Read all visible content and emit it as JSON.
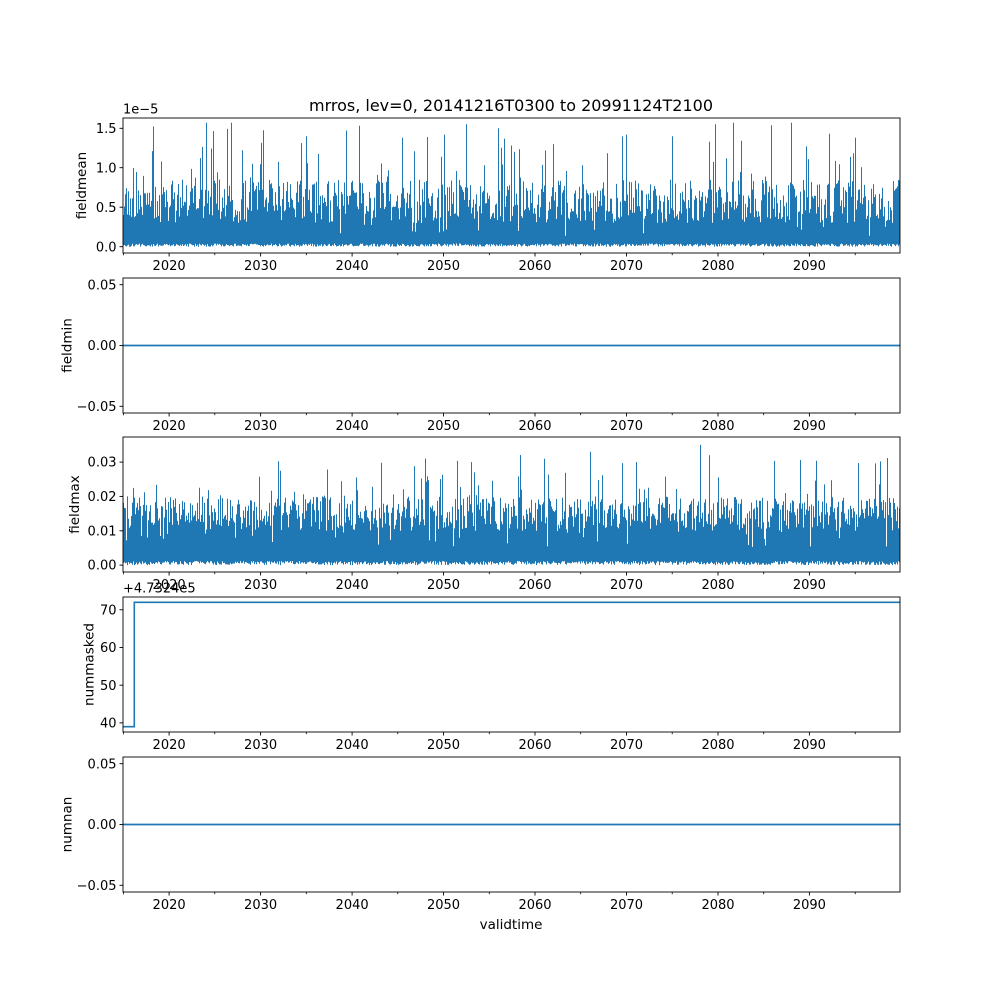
{
  "figure": {
    "title": "mrros, lev=0, 20141216T0300 to 20991124T2100",
    "xlabel": "validtime",
    "colors": {
      "line": "#1f77b4",
      "axes": "#000000",
      "background": "#ffffff",
      "text": "#000000"
    }
  },
  "x_axis": {
    "label": "validtime",
    "range": [
      2014.96,
      2099.9
    ],
    "major_ticks": [
      2020,
      2030,
      2040,
      2050,
      2060,
      2070,
      2080,
      2090
    ],
    "major_tick_labels": [
      "2020",
      "2030",
      "2040",
      "2050",
      "2060",
      "2070",
      "2080",
      "2090"
    ],
    "minor_ticks": [
      2015,
      2025,
      2035,
      2045,
      2055,
      2065,
      2075,
      2085,
      2095
    ]
  },
  "chart_data": [
    {
      "type": "line",
      "name": "fieldmean",
      "ylabel": "fieldmean",
      "offset_text": "1e−5",
      "unit_multiplier": "1e-5",
      "ylim": [
        -0.08,
        1.63
      ],
      "yticks": [
        0.0,
        0.5,
        1.0,
        1.5
      ],
      "ytick_labels": [
        "0.0",
        "0.5",
        "1.0",
        "1.5"
      ],
      "description": "Dense noisy 3-hourly series 2014-2099; baseline 0, solid mass up to ~0.3-0.8e-5, frequent peaks ~1.0e-5, rare spikes to ~1.57e-5",
      "series": {
        "kind": "noise",
        "seed": 1337,
        "base": 0.3,
        "var": 0.55,
        "spike_prob": 0.1,
        "spike_base": 0.2,
        "spike_var": 0.75,
        "dip_prob": 0.05,
        "dip_factor": 0.45,
        "max": 1.57,
        "lo_max": 0.04,
        "forced_spikes": [
          [
            2035,
            1.4
          ],
          [
            2045.5,
            1.38
          ],
          [
            2050,
            1.42
          ],
          [
            2052.5,
            1.55
          ],
          [
            2056,
            1.5
          ],
          [
            2062,
            1.3
          ],
          [
            2070,
            1.42
          ],
          [
            2075,
            1.4
          ],
          [
            2079,
            1.33
          ],
          [
            2088,
            1.57
          ],
          [
            2095,
            1.38
          ]
        ]
      }
    },
    {
      "type": "line",
      "name": "fieldmin",
      "ylabel": "fieldmin",
      "ylim": [
        -0.0555,
        0.0555
      ],
      "yticks": [
        -0.05,
        0.0,
        0.05
      ],
      "ytick_labels": [
        "−0.05",
        "0.00",
        "0.05"
      ],
      "description": "Constant zero over the whole 2014-2099 period",
      "series": {
        "kind": "constant",
        "value": 0
      }
    },
    {
      "type": "line",
      "name": "fieldmax",
      "ylabel": "fieldmax",
      "ylim": [
        -0.002,
        0.0373
      ],
      "yticks": [
        0.0,
        0.01,
        0.02,
        0.03
      ],
      "ytick_labels": [
        "0.00",
        "0.01",
        "0.02",
        "0.03"
      ],
      "description": "Dense noisy 3-hourly series; baseline 0, solid mass to ~0.01-0.02, peaks ~0.025, rare spikes to ~0.035",
      "series": {
        "kind": "noise",
        "seed": 2024,
        "base": 0.01,
        "var": 0.01,
        "spike_prob": 0.12,
        "spike_base": 0.002,
        "spike_var": 0.013,
        "dip_prob": 0.05,
        "dip_factor": 0.5,
        "max": 0.035,
        "lo_max": 0.0012,
        "forced_spikes": [
          [
            2048,
            0.031
          ],
          [
            2053,
            0.03
          ],
          [
            2066,
            0.033
          ],
          [
            2071,
            0.03
          ],
          [
            2078,
            0.035
          ],
          [
            2079,
            0.032
          ]
        ]
      }
    },
    {
      "type": "line",
      "name": "nummasked",
      "ylabel": "nummasked",
      "offset_text": "+4.7324e5",
      "ylim": [
        37.6,
        73.4
      ],
      "yticks": [
        40,
        50,
        60,
        70
      ],
      "ytick_labels": [
        "40",
        "50",
        "60",
        "70"
      ],
      "description": "Step function: ~39 (i.e. 473240+39) until early 2016, then constant ~72 through 2099",
      "series": {
        "kind": "step",
        "points": [
          [
            2014.96,
            39
          ],
          [
            2016.2,
            39
          ],
          [
            2016.2,
            72
          ],
          [
            2099.9,
            72
          ]
        ]
      }
    },
    {
      "type": "line",
      "name": "numnan",
      "ylabel": "numnan",
      "ylim": [
        -0.0555,
        0.0555
      ],
      "yticks": [
        -0.05,
        0.0,
        0.05
      ],
      "ytick_labels": [
        "−0.05",
        "0.00",
        "0.05"
      ],
      "description": "Constant zero over the whole 2014-2099 period",
      "series": {
        "kind": "constant",
        "value": 0
      }
    }
  ]
}
